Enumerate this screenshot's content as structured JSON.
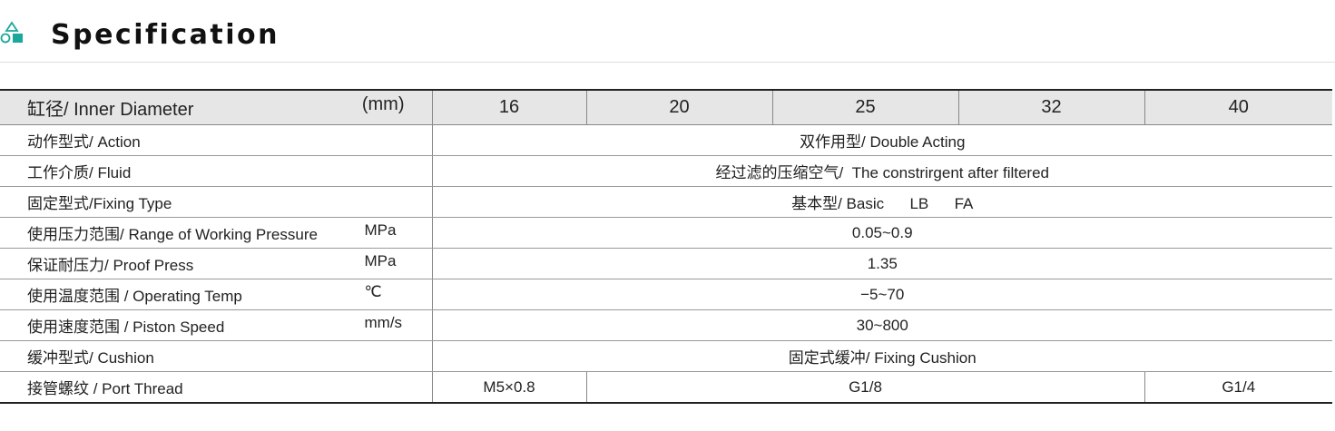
{
  "header": {
    "title": "Specification",
    "icon": "shapes-icon",
    "accent": "#1aa89c"
  },
  "table": {
    "header": {
      "label": "缸径/ Inner Diameter",
      "unit": "(mm)",
      "sizes": [
        "16",
        "20",
        "25",
        "32",
        "40"
      ]
    },
    "rows": [
      {
        "label": "动作型式/ Action",
        "unit": "",
        "value": "双作用型/ Double Acting"
      },
      {
        "label": "工作介质/ Fluid",
        "unit": "",
        "value": "经过滤的压缩空气/  The constrirgent after filtered"
      },
      {
        "label": "固定型式/Fixing Type",
        "unit": "",
        "value": "基本型/ Basic      LB      FA"
      },
      {
        "label": "使用压力范围/ Range of Working Pressure",
        "unit": "MPa",
        "value": "0.05~0.9"
      },
      {
        "label": "保证耐压力/ Proof Press",
        "unit": "MPa",
        "value": "1.35"
      },
      {
        "label": "使用温度范围 / Operating Temp",
        "unit": "℃",
        "value": "−5~70"
      },
      {
        "label": "使用速度范围  / Piston Speed",
        "unit": "mm/s",
        "value": "30~800"
      },
      {
        "label": "缓冲型式/ Cushion",
        "unit": "",
        "value": "固定式缓冲/ Fixing Cushion"
      }
    ],
    "port_thread": {
      "label": "接管螺纹 / Port Thread",
      "values": [
        "M5×0.8",
        "G1/8",
        "G1/4"
      ]
    }
  }
}
